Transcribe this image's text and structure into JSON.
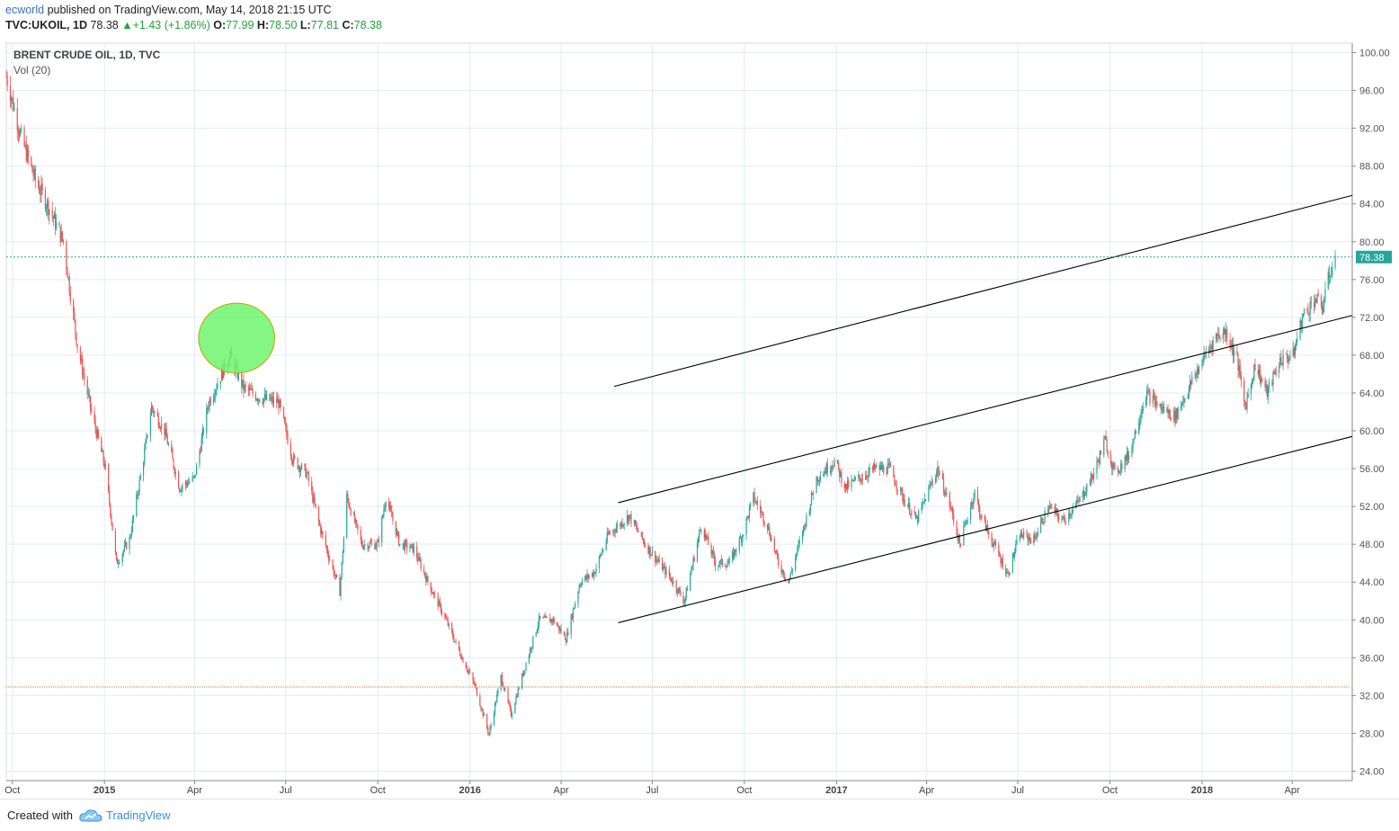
{
  "header": {
    "author": "ecworld",
    "published_text": "published on TradingView.com, May 14, 2018 21:15 UTC"
  },
  "ohlc": {
    "symbol": "TVC:UKOIL, 1D",
    "last": "78.38",
    "change": "+1.43 (+1.86%)",
    "o_label": "O:",
    "o": "77.99",
    "h_label": "H:",
    "h": "78.50",
    "l_label": "L:",
    "l": "77.81",
    "c_label": "C:",
    "c": "78.38"
  },
  "legend": {
    "title": "BRENT CRUDE OIL, 1D, TVC",
    "indicator": "Vol (20)"
  },
  "footer": {
    "created_with": "Created with",
    "brand": "TradingView"
  },
  "colors": {
    "up": "#26a69a",
    "down": "#ef5350",
    "grid": "#e1ecf2",
    "price_line": "#26a69a",
    "support_line": "#e6a15a",
    "circle_fill": "#6ef46e",
    "circle_stroke": "#c8a000",
    "trendline": "#000000"
  },
  "chart_data": {
    "type": "candlestick",
    "title": "BRENT CRUDE OIL, 1D, TVC",
    "x_tick_labels": [
      "Oct",
      "2015",
      "Apr",
      "Jul",
      "Oct",
      "2016",
      "Apr",
      "Jul",
      "Oct",
      "2017",
      "Apr",
      "Jul",
      "Oct",
      "2018",
      "Apr"
    ],
    "x_tick_dates": [
      "2014-10-01",
      "2015-01-01",
      "2015-04-01",
      "2015-07-01",
      "2015-10-01",
      "2016-01-01",
      "2016-04-01",
      "2016-07-01",
      "2016-10-01",
      "2017-01-01",
      "2017-04-01",
      "2017-07-01",
      "2017-10-01",
      "2018-01-01",
      "2018-04-01"
    ],
    "x_range": [
      "2014-09-25",
      "2018-05-31"
    ],
    "y_ticks": [
      "24.00",
      "28.00",
      "32.00",
      "36.00",
      "40.00",
      "44.00",
      "48.00",
      "52.00",
      "56.00",
      "60.00",
      "64.00",
      "68.00",
      "72.00",
      "76.00",
      "80.00",
      "84.00",
      "88.00",
      "92.00",
      "96.00",
      "100.00"
    ],
    "ylim": [
      23,
      101
    ],
    "last_price": 78.38,
    "last_price_label": "78.38",
    "close_path": [
      [
        "2014-09-25",
        97.5
      ],
      [
        "2014-10-10",
        91
      ],
      [
        "2014-10-24",
        86.5
      ],
      [
        "2014-11-07",
        83.5
      ],
      [
        "2014-11-21",
        80
      ],
      [
        "2014-12-05",
        69
      ],
      [
        "2014-12-19",
        62
      ],
      [
        "2015-01-02",
        56
      ],
      [
        "2015-01-13",
        46
      ],
      [
        "2015-01-26",
        48.5
      ],
      [
        "2015-02-09",
        57
      ],
      [
        "2015-02-17",
        62.5
      ],
      [
        "2015-03-02",
        60
      ],
      [
        "2015-03-17",
        54
      ],
      [
        "2015-04-01",
        55
      ],
      [
        "2015-04-15",
        63
      ],
      [
        "2015-04-28",
        66
      ],
      [
        "2015-05-06",
        68
      ],
      [
        "2015-05-20",
        64.5
      ],
      [
        "2015-06-05",
        63.5
      ],
      [
        "2015-06-24",
        63
      ],
      [
        "2015-07-08",
        57
      ],
      [
        "2015-07-22",
        55.5
      ],
      [
        "2015-08-05",
        49.5
      ],
      [
        "2015-08-24",
        43
      ],
      [
        "2015-08-31",
        53
      ],
      [
        "2015-09-15",
        48
      ],
      [
        "2015-10-01",
        48
      ],
      [
        "2015-10-09",
        53
      ],
      [
        "2015-10-23",
        48
      ],
      [
        "2015-11-06",
        47.5
      ],
      [
        "2015-11-20",
        44
      ],
      [
        "2015-12-08",
        40
      ],
      [
        "2015-12-22",
        36.5
      ],
      [
        "2016-01-06",
        33
      ],
      [
        "2016-01-20",
        27.9
      ],
      [
        "2016-02-01",
        34
      ],
      [
        "2016-02-11",
        30
      ],
      [
        "2016-02-22",
        34
      ],
      [
        "2016-03-10",
        40
      ],
      [
        "2016-03-24",
        40
      ],
      [
        "2016-04-06",
        38
      ],
      [
        "2016-04-20",
        44
      ],
      [
        "2016-05-04",
        45
      ],
      [
        "2016-05-18",
        49
      ],
      [
        "2016-06-08",
        51
      ],
      [
        "2016-06-24",
        48
      ],
      [
        "2016-07-08",
        46
      ],
      [
        "2016-07-22",
        44
      ],
      [
        "2016-08-02",
        42
      ],
      [
        "2016-08-19",
        50
      ],
      [
        "2016-09-02",
        46
      ],
      [
        "2016-09-16",
        46
      ],
      [
        "2016-09-29",
        49
      ],
      [
        "2016-10-10",
        53
      ],
      [
        "2016-10-24",
        50
      ],
      [
        "2016-11-04",
        46
      ],
      [
        "2016-11-14",
        44
      ],
      [
        "2016-11-30",
        50
      ],
      [
        "2016-12-12",
        55
      ],
      [
        "2016-12-30",
        56.8
      ],
      [
        "2017-01-10",
        54
      ],
      [
        "2017-01-24",
        55
      ],
      [
        "2017-02-08",
        56
      ],
      [
        "2017-02-23",
        56
      ],
      [
        "2017-03-08",
        53
      ],
      [
        "2017-03-22",
        50.5
      ],
      [
        "2017-04-04",
        54
      ],
      [
        "2017-04-12",
        56
      ],
      [
        "2017-04-26",
        51.5
      ],
      [
        "2017-05-04",
        48
      ],
      [
        "2017-05-19",
        53.5
      ],
      [
        "2017-05-25",
        51
      ],
      [
        "2017-06-07",
        48
      ],
      [
        "2017-06-21",
        44.8
      ],
      [
        "2017-07-03",
        49
      ],
      [
        "2017-07-17",
        48.5
      ],
      [
        "2017-08-01",
        52
      ],
      [
        "2017-08-15",
        50.5
      ],
      [
        "2017-08-31",
        52.5
      ],
      [
        "2017-09-15",
        55.5
      ],
      [
        "2017-09-26",
        59
      ],
      [
        "2017-10-06",
        55.5
      ],
      [
        "2017-10-20",
        57.5
      ],
      [
        "2017-11-06",
        64
      ],
      [
        "2017-11-20",
        62.5
      ],
      [
        "2017-12-05",
        61.5
      ],
      [
        "2017-12-21",
        65
      ],
      [
        "2018-01-04",
        68
      ],
      [
        "2018-01-15",
        70
      ],
      [
        "2018-01-25",
        70.5
      ],
      [
        "2018-02-05",
        67.5
      ],
      [
        "2018-02-13",
        62.5
      ],
      [
        "2018-02-23",
        67
      ],
      [
        "2018-03-07",
        64
      ],
      [
        "2018-03-20",
        67.5
      ],
      [
        "2018-04-02",
        68
      ],
      [
        "2018-04-11",
        72
      ],
      [
        "2018-04-24",
        74
      ],
      [
        "2018-05-01",
        73
      ],
      [
        "2018-05-08",
        76.5
      ],
      [
        "2018-05-14",
        78.38
      ]
    ],
    "annotations": [
      {
        "type": "trendline",
        "from": [
          "2016-05-24",
          64.7
        ],
        "to": [
          "2018-05-31",
          84.9
        ]
      },
      {
        "type": "trendline",
        "from": [
          "2016-05-28",
          52.4
        ],
        "to": [
          "2018-05-31",
          72.2
        ]
      },
      {
        "type": "trendline",
        "from": [
          "2016-05-28",
          39.7
        ],
        "to": [
          "2018-05-31",
          59.4
        ]
      },
      {
        "type": "horizontal_line",
        "y": 32.9,
        "from": "2014-09-25",
        "to": "2018-05-28"
      },
      {
        "type": "horizontal_line",
        "y": 78.38,
        "style": "dotted",
        "from": "2014-09-25",
        "to": "2018-05-31"
      },
      {
        "type": "ellipse",
        "center": [
          "2015-05-13",
          69.8
        ],
        "rx_days": 38,
        "ry_value": 3.7
      }
    ],
    "grid": true,
    "volume_indicator": "Vol (20)"
  }
}
